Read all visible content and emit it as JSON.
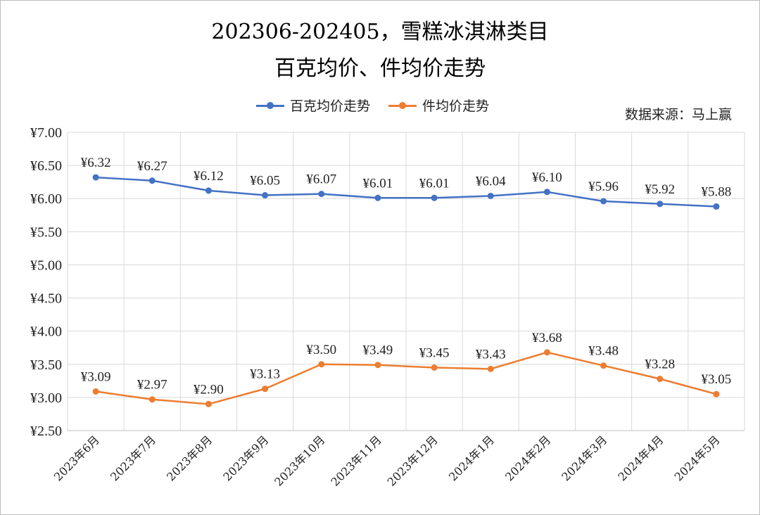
{
  "chart_data": {
    "type": "line",
    "title": "202306-202405，雪糕冰淇淋类目",
    "subtitle": "百克均价、件均价走势",
    "source": "数据来源：马上赢",
    "x": [
      "2023年6月",
      "2023年7月",
      "2023年8月",
      "2023年9月",
      "2023年10月",
      "2023年11月",
      "2023年12月",
      "2024年1月",
      "2024年2月",
      "2024年3月",
      "2024年4月",
      "2024年5月"
    ],
    "ylim": [
      2.5,
      7.0
    ],
    "yticks": [
      "¥2.50",
      "¥3.00",
      "¥3.50",
      "¥4.00",
      "¥4.50",
      "¥5.00",
      "¥5.50",
      "¥6.00",
      "¥6.50",
      "¥7.00"
    ],
    "grid": true,
    "legend_position": "top",
    "series": [
      {
        "name": "百克均价走势",
        "color": "#4472C4",
        "values": [
          6.32,
          6.27,
          6.12,
          6.05,
          6.07,
          6.01,
          6.01,
          6.04,
          6.1,
          5.96,
          5.92,
          5.88
        ],
        "labels": [
          "¥6.32",
          "¥6.27",
          "¥6.12",
          "¥6.05",
          "¥6.07",
          "¥6.01",
          "¥6.01",
          "¥6.04",
          "¥6.10",
          "¥5.96",
          "¥5.92",
          "¥5.88"
        ]
      },
      {
        "name": "件均价走势",
        "color": "#ED7D31",
        "values": [
          3.09,
          2.97,
          2.9,
          3.13,
          3.5,
          3.49,
          3.45,
          3.43,
          3.68,
          3.48,
          3.28,
          3.05
        ],
        "labels": [
          "¥3.09",
          "¥2.97",
          "¥2.90",
          "¥3.13",
          "¥3.50",
          "¥3.49",
          "¥3.45",
          "¥3.43",
          "¥3.68",
          "¥3.48",
          "¥3.28",
          "¥3.05"
        ]
      }
    ]
  }
}
